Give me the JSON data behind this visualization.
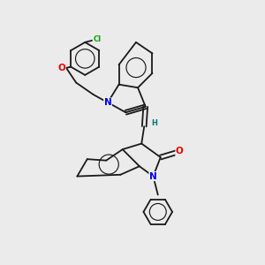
{
  "background_color": "#ebebeb",
  "figsize": [
    3.0,
    3.0
  ],
  "dpi": 100,
  "atom_colors": {
    "C": "#1a1a1a",
    "N": "#0000ee",
    "O": "#ee0000",
    "Cl": "#00aa00",
    "H": "#007777"
  },
  "bond_color": "#1a1a1a",
  "bond_width": 1.3,
  "font_size_atom": 7.5,
  "font_size_small": 6.0
}
